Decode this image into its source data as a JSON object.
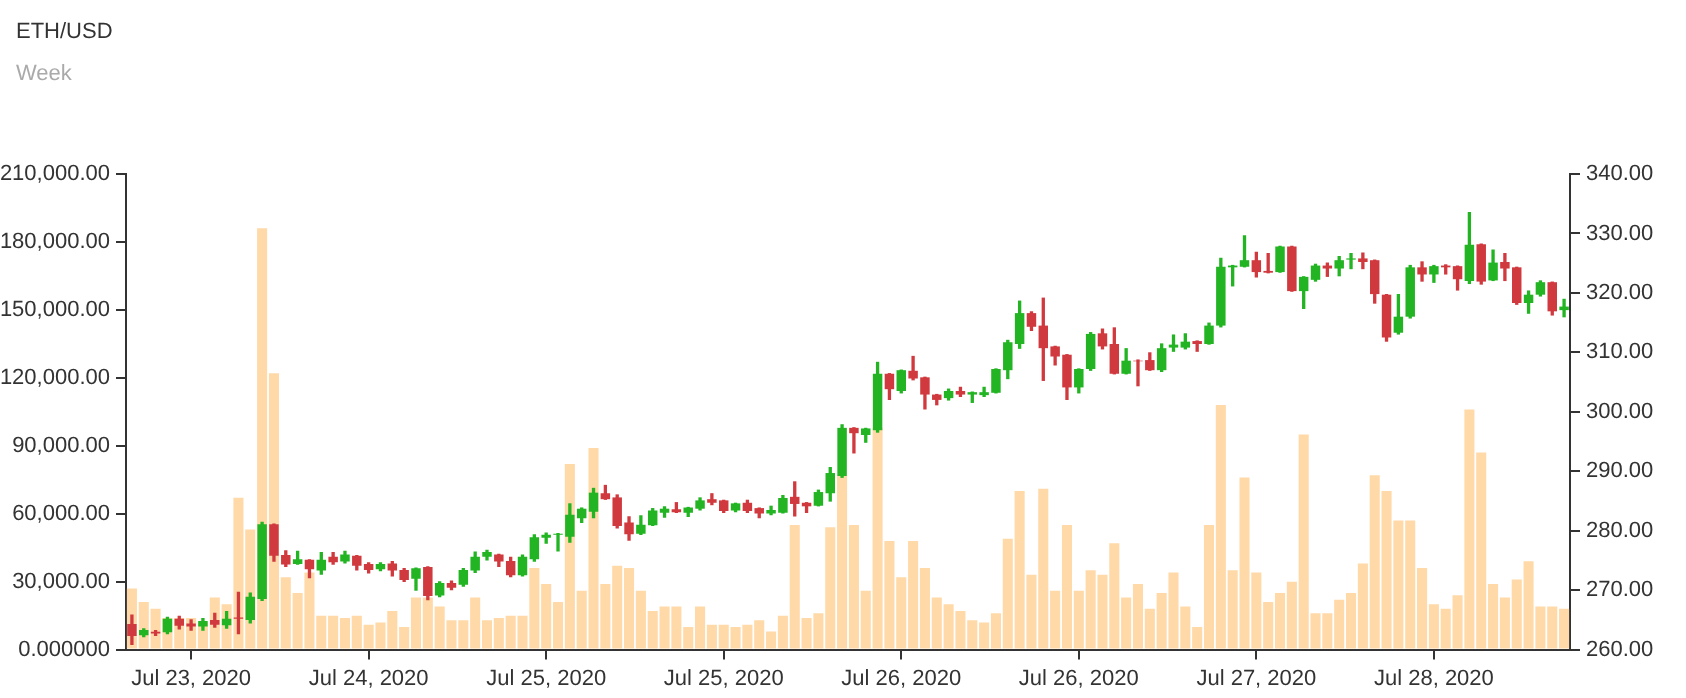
{
  "chart_data": {
    "type": "bar",
    "title": "ETH/USD",
    "subtitle": "Week",
    "categories": [
      null,
      null,
      null,
      null,
      null,
      "Jul 23, 2020",
      null,
      null,
      null,
      null,
      null,
      null,
      null,
      null,
      null,
      null,
      null,
      null,
      null,
      null,
      "Jul 24, 2020",
      null,
      null,
      null,
      null,
      null,
      null,
      null,
      null,
      null,
      null,
      null,
      null,
      null,
      null,
      "Jul 25, 2020",
      null,
      null,
      null,
      null,
      null,
      null,
      null,
      null,
      null,
      null,
      null,
      null,
      null,
      null,
      "Jul 25, 2020",
      null,
      null,
      null,
      null,
      null,
      null,
      null,
      null,
      null,
      null,
      null,
      null,
      null,
      null,
      "Jul 26, 2020",
      null,
      null,
      null,
      null,
      null,
      null,
      null,
      null,
      null,
      null,
      null,
      null,
      null,
      null,
      "Jul 26, 2020",
      null,
      null,
      null,
      null,
      null,
      null,
      null,
      null,
      null,
      null,
      null,
      null,
      null,
      null,
      "Jul 27, 2020",
      null,
      null,
      null,
      null,
      null,
      null,
      null,
      null,
      null,
      null,
      null,
      null,
      null,
      null,
      "Jul 28, 2020",
      null,
      null,
      null,
      null,
      null,
      null,
      null,
      null,
      null,
      null,
      null
    ],
    "ylim": [
      0,
      210000
    ],
    "yticks": [
      {
        "value": 0,
        "label": "0.000000"
      },
      {
        "value": 30000,
        "label": "30,000.00"
      },
      {
        "value": 60000,
        "label": "60,000.00"
      },
      {
        "value": 90000,
        "label": "90,000.00"
      },
      {
        "value": 120000,
        "label": "120,000.00"
      },
      {
        "value": 150000,
        "label": "150,000.00"
      },
      {
        "value": 180000,
        "label": "180,000.00"
      },
      {
        "value": 210000,
        "label": "210,000.00"
      }
    ],
    "y2lim": [
      260,
      340
    ],
    "y2ticks": [
      {
        "value": 260,
        "label": "260.00"
      },
      {
        "value": 270,
        "label": "270.00"
      },
      {
        "value": 280,
        "label": "280.00"
      },
      {
        "value": 290,
        "label": "290.00"
      },
      {
        "value": 300,
        "label": "300.00"
      },
      {
        "value": 310,
        "label": "310.00"
      },
      {
        "value": 320,
        "label": "320.00"
      },
      {
        "value": 330,
        "label": "330.00"
      },
      {
        "value": 340,
        "label": "340.00"
      }
    ],
    "grid": false,
    "series": [
      {
        "color": "#ffd9a8",
        "values": [
          27000,
          21000,
          18000,
          14000,
          14000,
          14000,
          12000,
          23000,
          20000,
          67000,
          53000,
          186000,
          122000,
          32000,
          25000,
          34000,
          15000,
          15000,
          14000,
          15000,
          11000,
          12000,
          17000,
          10000,
          23000,
          23000,
          19000,
          13000,
          13000,
          23000,
          13000,
          14000,
          15000,
          15000,
          36000,
          29000,
          21000,
          82000,
          26000,
          89000,
          29000,
          37000,
          36000,
          26000,
          17000,
          19000,
          19000,
          10000,
          19000,
          11000,
          11000,
          10000,
          11000,
          13000,
          8000,
          15000,
          55000,
          14000,
          16000,
          54000,
          77000,
          55000,
          26000,
          98000,
          48000,
          32000,
          48000,
          36000,
          23000,
          20000,
          17000,
          13000,
          12000,
          16000,
          49000,
          70000,
          33000,
          71000,
          26000,
          55000,
          26000,
          35000,
          33000,
          47000,
          23000,
          29000,
          18000,
          25000,
          34000,
          19000,
          10000,
          55000,
          108000,
          35000,
          76000,
          34000,
          21000,
          25000,
          30000,
          95000,
          16000,
          16000,
          22000,
          25000,
          38000,
          77000,
          70000,
          57000,
          57000,
          36000,
          20000,
          18000,
          24000,
          106000,
          87000,
          29000,
          23000,
          31000,
          39000,
          19000,
          19000,
          18000
        ]
      },
      {
        "type": "candlestick",
        "axis": "y2",
        "colors": [
          "#d0393e",
          "#22b422",
          "#d0393e",
          "#22b422",
          "#d0393e",
          "#d0393e",
          "#22b422",
          "#d0393e",
          "#22b422",
          "#d0393e",
          "#22b422",
          "#22b422",
          "#d0393e",
          "#d0393e",
          "#22b422",
          "#d0393e",
          "#22b422",
          "#d0393e",
          "#22b422",
          "#d0393e",
          "#d0393e",
          "#22b422",
          "#d0393e",
          "#d0393e",
          "#22b422",
          "#d0393e",
          "#22b422",
          "#d0393e",
          "#22b422",
          "#22b422",
          "#22b422",
          "#d0393e",
          "#d0393e",
          "#22b422",
          "#22b422",
          "#22b422",
          "#22b422",
          "#22b422",
          "#22b422",
          "#22b422",
          "#d0393e",
          "#d0393e",
          "#d0393e",
          "#22b422",
          "#22b422",
          "#22b422",
          "#d0393e",
          "#22b422",
          "#22b422",
          "#d0393e",
          "#d0393e",
          "#22b422",
          "#d0393e",
          "#d0393e",
          "#22b422",
          "#22b422",
          "#d0393e",
          "#d0393e",
          "#22b422",
          "#22b422",
          "#22b422",
          "#d0393e",
          "#22b422",
          "#22b422",
          "#d0393e",
          "#22b422",
          "#d0393e",
          "#d0393e",
          "#d0393e",
          "#22b422",
          "#d0393e",
          "#22b422",
          "#22b422",
          "#22b422",
          "#22b422",
          "#22b422",
          "#d0393e",
          "#d0393e",
          "#d0393e",
          "#d0393e",
          "#22b422",
          "#22b422",
          "#d0393e",
          "#d0393e",
          "#22b422",
          "#d0393e",
          "#d0393e",
          "#22b422",
          "#22b422",
          "#22b422",
          "#d0393e",
          "#22b422",
          "#22b422",
          "#22b422",
          "#22b422",
          "#d0393e",
          "#d0393e",
          "#22b422",
          "#d0393e",
          "#22b422",
          "#22b422",
          "#d0393e",
          "#22b422",
          "#22b422",
          "#d0393e",
          "#d0393e",
          "#d0393e",
          "#22b422",
          "#22b422",
          "#d0393e",
          "#22b422",
          "#d0393e",
          "#d0393e",
          "#22b422",
          "#d0393e",
          "#22b422",
          "#d0393e",
          "#d0393e",
          "#22b422",
          "#22b422",
          "#d0393e",
          "#22b422"
        ],
        "ohlc": [
          [
            264.3,
            265.8,
            260.9,
            262.3
          ],
          [
            262.4,
            263.5,
            262.2,
            263.3
          ],
          [
            263.0,
            263.2,
            262.4,
            262.7
          ],
          [
            262.9,
            265.4,
            262.7,
            265.2
          ],
          [
            265.2,
            265.6,
            263.5,
            264.0
          ],
          [
            264.4,
            265.0,
            263.3,
            263.9
          ],
          [
            263.9,
            265.2,
            263.3,
            264.8
          ],
          [
            265.0,
            266.1,
            263.8,
            264.2
          ],
          [
            264.1,
            266.4,
            263.6,
            265.2
          ],
          [
            265.4,
            269.6,
            262.7,
            265.2
          ],
          [
            265.0,
            269.5,
            264.5,
            268.9
          ],
          [
            268.5,
            281.4,
            268.3,
            281.1
          ],
          [
            281.1,
            281.1,
            274.9,
            275.8
          ],
          [
            275.9,
            276.6,
            274.0,
            274.3
          ],
          [
            274.4,
            276.5,
            274.4,
            275.2
          ],
          [
            275.1,
            275.1,
            272.1,
            273.5
          ],
          [
            273.3,
            276.3,
            272.7,
            275.1
          ],
          [
            275.6,
            276.3,
            274.4,
            274.7
          ],
          [
            274.8,
            276.5,
            274.6,
            276.0
          ],
          [
            275.8,
            275.8,
            273.4,
            274.1
          ],
          [
            274.4,
            274.6,
            272.9,
            273.4
          ],
          [
            273.5,
            274.6,
            273.3,
            274.4
          ],
          [
            274.5,
            274.8,
            272.4,
            273.3
          ],
          [
            273.4,
            273.6,
            271.5,
            271.7
          ],
          [
            271.9,
            273.7,
            270.0,
            273.7
          ],
          [
            273.9,
            273.9,
            268.4,
            269.0
          ],
          [
            269.1,
            271.4,
            268.9,
            271.2
          ],
          [
            271.2,
            271.5,
            270.1,
            270.4
          ],
          [
            270.9,
            273.6,
            270.7,
            273.4
          ],
          [
            273.3,
            276.4,
            273.0,
            275.6
          ],
          [
            275.6,
            276.7,
            275.1,
            276.4
          ],
          [
            276.0,
            276.0,
            274.0,
            274.8
          ],
          [
            274.9,
            275.5,
            272.3,
            272.5
          ],
          [
            272.5,
            275.9,
            272.4,
            275.6
          ],
          [
            275.2,
            279.3,
            274.9,
            278.9
          ],
          [
            278.8,
            279.6,
            277.9,
            279.3
          ],
          [
            279.3,
            279.5,
            276.6,
            279.5
          ],
          [
            279.0,
            284.5,
            278.1,
            282.7
          ],
          [
            282.1,
            283.8,
            281.4,
            283.7
          ],
          [
            283.2,
            287.1,
            282.2,
            286.4
          ],
          [
            286.3,
            287.6,
            285.3,
            285.3
          ],
          [
            285.6,
            286.0,
            280.5,
            280.8
          ],
          [
            281.4,
            282.3,
            278.4,
            279.4
          ],
          [
            279.5,
            282.5,
            279.4,
            281.0
          ],
          [
            280.9,
            283.7,
            280.9,
            283.4
          ],
          [
            283.0,
            284.0,
            282.3,
            283.7
          ],
          [
            283.6,
            284.7,
            283.1,
            283.1
          ],
          [
            283.0,
            283.9,
            282.4,
            283.9
          ],
          [
            283.7,
            285.5,
            283.5,
            285.1
          ],
          [
            285.3,
            286.2,
            284.4,
            284.7
          ],
          [
            285.1,
            285.1,
            283.1,
            283.3
          ],
          [
            283.4,
            284.6,
            283.2,
            284.6
          ],
          [
            284.7,
            285.1,
            283.1,
            283.3
          ],
          [
            283.8,
            283.8,
            282.2,
            282.9
          ],
          [
            282.9,
            284.1,
            282.7,
            283.5
          ],
          [
            283.0,
            285.9,
            283.0,
            285.5
          ],
          [
            285.7,
            288.2,
            282.5,
            284.5
          ],
          [
            284.7,
            284.7,
            283.1,
            284.1
          ],
          [
            284.2,
            286.8,
            284.2,
            286.5
          ],
          [
            286.3,
            290.6,
            285.0,
            289.7
          ],
          [
            289.2,
            297.8,
            289.0,
            297.3
          ],
          [
            297.3,
            297.3,
            293.1,
            296.4
          ],
          [
            296.1,
            297.2,
            294.9,
            297.2
          ],
          [
            296.9,
            308.3,
            296.6,
            306.4
          ],
          [
            306.4,
            306.4,
            302.1,
            303.8
          ],
          [
            303.5,
            307.0,
            303.2,
            307.0
          ],
          [
            306.9,
            309.3,
            305.4,
            305.6
          ],
          [
            305.8,
            305.8,
            300.5,
            302.9
          ],
          [
            302.9,
            302.9,
            301.2,
            302.0
          ],
          [
            302.3,
            303.8,
            302.0,
            303.5
          ],
          [
            303.5,
            304.1,
            302.6,
            302.9
          ],
          [
            302.9,
            303.3,
            301.6,
            303.3
          ],
          [
            302.8,
            304.1,
            302.6,
            303.3
          ],
          [
            303.2,
            307.2,
            303.2,
            307.2
          ],
          [
            307.0,
            312.0,
            305.6,
            311.7
          ],
          [
            311.4,
            318.6,
            310.7,
            316.6
          ],
          [
            316.6,
            316.8,
            313.7,
            314.3
          ],
          [
            314.5,
            319.1,
            305.3,
            310.7
          ],
          [
            311.0,
            311.0,
            307.9,
            309.3
          ],
          [
            309.6,
            309.6,
            302.1,
            304.1
          ],
          [
            304.1,
            307.2,
            303.2,
            307.2
          ],
          [
            307.2,
            313.3,
            307.0,
            313.1
          ],
          [
            313.2,
            313.9,
            310.6,
            311.0
          ],
          [
            311.4,
            314.1,
            306.4,
            306.4
          ],
          [
            306.4,
            310.6,
            306.4,
            308.6
          ],
          [
            308.6,
            308.7,
            304.4,
            308.5
          ],
          [
            308.7,
            309.9,
            307.0,
            307.0
          ],
          [
            307.0,
            311.4,
            306.8,
            310.7
          ],
          [
            310.8,
            312.9,
            310.2,
            311.3
          ],
          [
            310.8,
            313.1,
            310.6,
            311.8
          ],
          [
            311.9,
            311.9,
            310.2,
            311.4
          ],
          [
            311.4,
            314.9,
            311.4,
            314.5
          ],
          [
            314.5,
            325.8,
            314.3,
            324.4
          ],
          [
            324.3,
            324.6,
            321.2,
            324.6
          ],
          [
            324.4,
            329.6,
            324.4,
            325.5
          ],
          [
            325.5,
            326.8,
            322.7,
            323.5
          ],
          [
            323.7,
            326.6,
            323.4,
            323.4
          ],
          [
            323.5,
            327.8,
            323.5,
            327.8
          ],
          [
            327.8,
            327.8,
            320.3,
            320.3
          ],
          [
            320.3,
            322.7,
            317.4,
            322.7
          ],
          [
            322.2,
            324.8,
            322.0,
            324.6
          ],
          [
            324.6,
            325.0,
            322.8,
            324.1
          ],
          [
            324.1,
            326.1,
            322.9,
            325.5
          ],
          [
            325.6,
            326.6,
            324.1,
            325.8
          ],
          [
            325.8,
            326.7,
            324.1,
            325.2
          ],
          [
            325.5,
            325.5,
            318.3,
            319.8
          ],
          [
            319.7,
            319.7,
            311.9,
            312.5
          ],
          [
            313.3,
            319.7,
            313.1,
            316.0
          ],
          [
            316.0,
            324.6,
            315.8,
            324.3
          ],
          [
            324.3,
            325.2,
            322.0,
            323.1
          ],
          [
            323.1,
            324.6,
            321.8,
            324.5
          ],
          [
            324.6,
            324.7,
            323.2,
            324.3
          ],
          [
            324.5,
            324.5,
            320.5,
            322.3
          ],
          [
            322.0,
            333.5,
            321.6,
            328.1
          ],
          [
            328.2,
            328.2,
            321.5,
            321.9
          ],
          [
            322.1,
            327.2,
            322.1,
            325.1
          ],
          [
            325.2,
            326.6,
            322.1,
            324.1
          ],
          [
            324.3,
            324.3,
            318.1,
            318.3
          ],
          [
            318.3,
            320.3,
            316.6,
            319.7
          ],
          [
            319.7,
            322.0,
            319.5,
            321.8
          ],
          [
            321.8,
            321.8,
            316.3,
            316.9
          ],
          [
            317.1,
            318.9,
            316.0,
            317.7
          ]
        ]
      }
    ]
  }
}
